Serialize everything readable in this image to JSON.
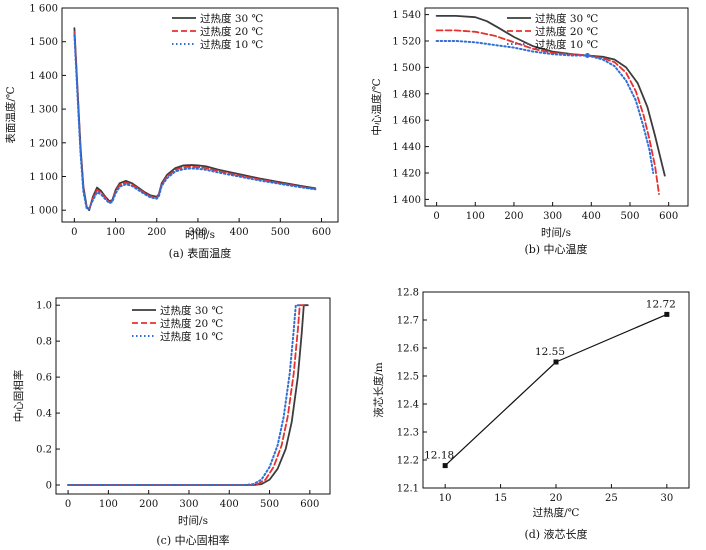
{
  "colors": {
    "s30": "#3c3c3c",
    "s20": "#e8302e",
    "s10": "#2f6fd6",
    "line": "#111111"
  },
  "chart_data": [
    {
      "id": "a",
      "type": "line",
      "caption": "(a) 表面温度",
      "xlabel": "时间/s",
      "ylabel": "表面温度/℃",
      "xlim": [
        -30,
        640
      ],
      "ylim": [
        965,
        1600
      ],
      "xticks": [
        0,
        100,
        200,
        300,
        400,
        500,
        600
      ],
      "yticks": [
        1000,
        1100,
        1200,
        1300,
        1400,
        1500,
        1600
      ],
      "ytick_labels": [
        "1 000",
        "1 100",
        "1 200",
        "1 300",
        "1 400",
        "1 500",
        "1 600"
      ],
      "legend": "top-right",
      "series": [
        {
          "name": "过热度 30 ℃",
          "style": "solid",
          "x": [
            0,
            8,
            15,
            22,
            30,
            36,
            45,
            55,
            65,
            75,
            85,
            92,
            100,
            110,
            125,
            140,
            155,
            170,
            185,
            200,
            205,
            212,
            225,
            245,
            265,
            285,
            300,
            320,
            350,
            400,
            450,
            500,
            550,
            585
          ],
          "y": [
            1540,
            1350,
            1190,
            1070,
            1010,
            1000,
            1040,
            1067,
            1057,
            1040,
            1027,
            1030,
            1060,
            1080,
            1087,
            1080,
            1067,
            1054,
            1044,
            1040,
            1047,
            1080,
            1105,
            1125,
            1133,
            1134,
            1133,
            1130,
            1120,
            1107,
            1094,
            1083,
            1072,
            1065
          ]
        },
        {
          "name": "过热度 20 ℃",
          "style": "dash",
          "x": [
            0,
            8,
            15,
            22,
            30,
            36,
            45,
            55,
            65,
            75,
            85,
            92,
            100,
            110,
            125,
            140,
            155,
            170,
            185,
            200,
            205,
            212,
            225,
            245,
            265,
            285,
            300,
            320,
            350,
            400,
            450,
            500,
            550,
            585
          ],
          "y": [
            1530,
            1340,
            1180,
            1062,
            1007,
            1003,
            1035,
            1060,
            1052,
            1037,
            1024,
            1028,
            1055,
            1075,
            1082,
            1076,
            1064,
            1051,
            1041,
            1037,
            1044,
            1076,
            1100,
            1120,
            1128,
            1129,
            1128,
            1125,
            1116,
            1103,
            1091,
            1080,
            1070,
            1063
          ]
        },
        {
          "name": "过热度 10 ℃",
          "style": "dot",
          "x": [
            0,
            8,
            15,
            22,
            30,
            36,
            45,
            55,
            65,
            75,
            85,
            92,
            100,
            110,
            125,
            140,
            155,
            170,
            185,
            200,
            205,
            212,
            225,
            245,
            265,
            285,
            300,
            320,
            350,
            400,
            450,
            500,
            550,
            585
          ],
          "y": [
            1520,
            1330,
            1170,
            1055,
            1005,
            1005,
            1030,
            1053,
            1047,
            1033,
            1021,
            1025,
            1050,
            1070,
            1077,
            1072,
            1060,
            1048,
            1038,
            1034,
            1041,
            1072,
            1095,
            1115,
            1122,
            1124,
            1123,
            1120,
            1112,
            1100,
            1088,
            1078,
            1068,
            1062
          ]
        }
      ]
    },
    {
      "id": "b",
      "type": "line",
      "caption": "(b) 中心温度",
      "xlabel": "时间/s",
      "ylabel": "中心温度/℃",
      "xlim": [
        -30,
        650
      ],
      "ylim": [
        1395,
        1545
      ],
      "xticks": [
        0,
        100,
        200,
        300,
        400,
        500,
        600
      ],
      "yticks": [
        1400,
        1420,
        1440,
        1460,
        1480,
        1500,
        1520,
        1540
      ],
      "ytick_labels": [
        "1 400",
        "1 420",
        "1 440",
        "1 460",
        "1 480",
        "1 500",
        "1 520",
        "1 540"
      ],
      "legend": "top-right",
      "marker": {
        "x": 390,
        "y": 1509
      },
      "series": [
        {
          "name": "过热度 30 ℃",
          "style": "solid",
          "x": [
            0,
            50,
            100,
            130,
            160,
            200,
            250,
            300,
            350,
            390,
            430,
            460,
            490,
            520,
            545,
            565,
            580,
            590
          ],
          "y": [
            1539,
            1539,
            1538,
            1535,
            1530,
            1523,
            1516,
            1512,
            1510,
            1509,
            1508,
            1506,
            1500,
            1488,
            1470,
            1448,
            1430,
            1418
          ]
        },
        {
          "name": "过热度 20 ℃",
          "style": "dash",
          "x": [
            0,
            50,
            100,
            150,
            200,
            250,
            300,
            350,
            390,
            430,
            460,
            490,
            515,
            535,
            550,
            565,
            575
          ],
          "y": [
            1528,
            1528,
            1527,
            1524,
            1519,
            1514,
            1511,
            1510,
            1509,
            1507,
            1504,
            1496,
            1482,
            1464,
            1446,
            1425,
            1404
          ]
        },
        {
          "name": "过热度 10 ℃",
          "style": "dot",
          "x": [
            0,
            50,
            100,
            150,
            200,
            250,
            300,
            350,
            390,
            430,
            460,
            490,
            515,
            535,
            550,
            560
          ],
          "y": [
            1520,
            1520,
            1519,
            1517,
            1515,
            1512,
            1510,
            1509,
            1509,
            1506,
            1501,
            1490,
            1475,
            1455,
            1438,
            1420
          ]
        }
      ]
    },
    {
      "id": "c",
      "type": "line",
      "caption": "(c) 中心固相率",
      "xlabel": "时间/s",
      "ylabel": "中心固相率",
      "xlim": [
        -30,
        650
      ],
      "ylim": [
        -0.05,
        1.04
      ],
      "xticks": [
        0,
        100,
        200,
        300,
        400,
        500,
        600
      ],
      "yticks": [
        0,
        0.2,
        0.4,
        0.6,
        0.8,
        1.0
      ],
      "ytick_labels": [
        "0",
        "0.2",
        "0.4",
        "0.6",
        "0.8",
        "1.0"
      ],
      "legend": "top-right",
      "series": [
        {
          "name": "过热度 30 ℃",
          "style": "solid",
          "x": [
            0,
            460,
            480,
            500,
            520,
            540,
            555,
            570,
            580,
            585,
            595
          ],
          "y": [
            0,
            0,
            0.005,
            0.03,
            0.09,
            0.2,
            0.35,
            0.6,
            0.85,
            1.0,
            1.0
          ]
        },
        {
          "name": "过热度 20 ℃",
          "style": "dash",
          "x": [
            0,
            450,
            470,
            490,
            510,
            530,
            545,
            560,
            570,
            575,
            585
          ],
          "y": [
            0,
            0,
            0.005,
            0.03,
            0.1,
            0.22,
            0.38,
            0.62,
            0.86,
            1.0,
            1.0
          ]
        },
        {
          "name": "过热度 10 ℃",
          "style": "dot",
          "x": [
            0,
            440,
            460,
            480,
            500,
            520,
            535,
            550,
            560,
            565,
            575
          ],
          "y": [
            0,
            0,
            0.005,
            0.03,
            0.1,
            0.22,
            0.38,
            0.62,
            0.86,
            1.0,
            1.0
          ]
        }
      ]
    },
    {
      "id": "d",
      "type": "line",
      "caption": "(d) 液芯长度",
      "xlabel": "过热度/℃",
      "ylabel": "液芯长度/m",
      "xlim": [
        8,
        32
      ],
      "ylim": [
        12.1,
        12.8
      ],
      "xticks": [
        10,
        15,
        20,
        25,
        30
      ],
      "yticks": [
        12.1,
        12.2,
        12.3,
        12.4,
        12.5,
        12.6,
        12.7,
        12.8
      ],
      "ytick_labels": [
        "12.1",
        "12.2",
        "12.3",
        "12.4",
        "12.5",
        "12.6",
        "12.7",
        "12.8"
      ],
      "series": [
        {
          "name": "液芯长度",
          "style": "solid-marker",
          "x": [
            10,
            20,
            30
          ],
          "y": [
            12.18,
            12.55,
            12.72
          ],
          "labels": [
            "12.18",
            "12.55",
            "12.72"
          ]
        }
      ]
    }
  ]
}
